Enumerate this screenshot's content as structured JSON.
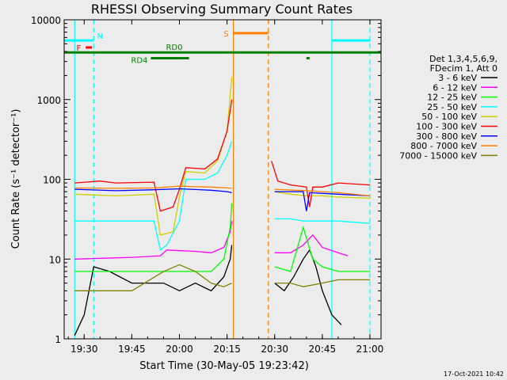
{
  "chart_data": {
    "type": "line",
    "title": "RHESSI Observing Summary Count Rates",
    "xlabel": "Start Time (30-May-05 19:23:42)",
    "ylabel": "Count Rate (s⁻¹ detector⁻¹)",
    "y_scale": "log",
    "ylim": [
      1,
      10000
    ],
    "xlim": [
      "19:23:42",
      "21:03:30"
    ],
    "x_ticks": [
      "19:30",
      "19:45",
      "20:00",
      "20:15",
      "20:30",
      "20:45",
      "21:00"
    ],
    "y_ticks": [
      "1",
      "10",
      "100",
      "1000",
      "10000"
    ],
    "legend_position": "right",
    "legend_header": [
      "Det 1,3,4,5,6,9,",
      "FDecim 1, Att 0"
    ],
    "series": [
      {
        "name": "3 - 6 keV",
        "color": "#000000",
        "points": [
          [
            "19:27",
            1.1
          ],
          [
            "19:30",
            2
          ],
          [
            "19:33",
            8
          ],
          [
            "19:38",
            7
          ],
          [
            "19:45",
            5
          ],
          [
            "19:55",
            5
          ],
          [
            "20:00",
            4
          ],
          [
            "20:05",
            5
          ],
          [
            "20:10",
            4
          ],
          [
            "20:14",
            6
          ],
          [
            "20:16",
            10
          ],
          [
            "20:16:30",
            15
          ]
        ],
        "points_after_gap": [
          [
            "20:30",
            5
          ],
          [
            "20:33",
            4
          ],
          [
            "20:36",
            6
          ],
          [
            "20:39",
            10
          ],
          [
            "20:41",
            13
          ],
          [
            "20:43",
            8
          ],
          [
            "20:45",
            4
          ],
          [
            "20:48",
            2
          ],
          [
            "20:51",
            1.5
          ]
        ]
      },
      {
        "name": "6 - 12 keV",
        "color": "#ff00ff",
        "points": [
          [
            "19:27",
            10
          ],
          [
            "19:45",
            10.5
          ],
          [
            "19:54",
            11
          ],
          [
            "19:56",
            13
          ],
          [
            "20:05",
            12.5
          ],
          [
            "20:10",
            12
          ],
          [
            "20:14",
            14
          ],
          [
            "20:16",
            22
          ],
          [
            "20:16:30",
            30
          ]
        ],
        "points_after_gap": [
          [
            "20:30",
            12
          ],
          [
            "20:35",
            12
          ],
          [
            "20:39",
            15
          ],
          [
            "20:42",
            20
          ],
          [
            "20:45",
            14
          ],
          [
            "20:50",
            12
          ],
          [
            "20:53",
            11
          ]
        ]
      },
      {
        "name": "12 - 25 keV",
        "color": "#00ff00",
        "points": [
          [
            "19:27",
            7
          ],
          [
            "19:45",
            7
          ],
          [
            "19:55",
            7
          ],
          [
            "20:00",
            7
          ],
          [
            "20:10",
            7
          ],
          [
            "20:14",
            10
          ],
          [
            "20:16",
            25
          ],
          [
            "20:16:30",
            50
          ]
        ],
        "points_after_gap": [
          [
            "20:30",
            8
          ],
          [
            "20:35",
            7
          ],
          [
            "20:39",
            25
          ],
          [
            "20:42",
            10
          ],
          [
            "20:45",
            8
          ],
          [
            "20:50",
            7
          ],
          [
            "21:00",
            7
          ]
        ]
      },
      {
        "name": "25 - 50 keV",
        "color": "#00ffff",
        "points": [
          [
            "19:27",
            30
          ],
          [
            "19:40",
            30
          ],
          [
            "19:52",
            30
          ],
          [
            "19:54",
            13
          ],
          [
            "19:56",
            15
          ],
          [
            "20:00",
            30
          ],
          [
            "20:02",
            100
          ],
          [
            "20:08",
            100
          ],
          [
            "20:12",
            120
          ],
          [
            "20:15",
            200
          ],
          [
            "20:16:30",
            300
          ]
        ],
        "points_after_gap": [
          [
            "20:30",
            32
          ],
          [
            "20:35",
            32
          ],
          [
            "20:39",
            30
          ],
          [
            "20:45",
            30
          ],
          [
            "20:50",
            30
          ],
          [
            "21:00",
            28
          ]
        ]
      },
      {
        "name": "50 - 100 keV",
        "color": "#d0d000",
        "points": [
          [
            "19:27",
            65
          ],
          [
            "19:40",
            62
          ],
          [
            "19:52",
            65
          ],
          [
            "19:54",
            20
          ],
          [
            "19:58",
            22
          ],
          [
            "20:00",
            60
          ],
          [
            "20:02",
            125
          ],
          [
            "20:08",
            120
          ],
          [
            "20:12",
            170
          ],
          [
            "20:15",
            400
          ],
          [
            "20:16:30",
            1900
          ]
        ],
        "points_after_gap": [
          [
            "20:30",
            70
          ],
          [
            "20:35",
            65
          ],
          [
            "20:40",
            62
          ],
          [
            "20:45",
            62
          ],
          [
            "20:50",
            60
          ],
          [
            "21:00",
            58
          ]
        ]
      },
      {
        "name": "100 - 300 keV",
        "color": "#ff0000",
        "points": [
          [
            "19:27",
            90
          ],
          [
            "19:35",
            95
          ],
          [
            "19:40",
            90
          ],
          [
            "19:52",
            92
          ],
          [
            "19:54",
            40
          ],
          [
            "19:58",
            45
          ],
          [
            "20:00",
            75
          ],
          [
            "20:02",
            140
          ],
          [
            "20:08",
            135
          ],
          [
            "20:12",
            180
          ],
          [
            "20:15",
            400
          ],
          [
            "20:16:30",
            1000
          ]
        ],
        "points_after_gap": [
          [
            "20:29",
            170
          ],
          [
            "20:31",
            95
          ],
          [
            "20:35",
            85
          ],
          [
            "20:40",
            80
          ],
          [
            "20:41",
            45
          ],
          [
            "20:42",
            80
          ],
          [
            "20:45",
            80
          ],
          [
            "20:50",
            90
          ],
          [
            "21:00",
            85
          ]
        ]
      },
      {
        "name": "300 - 800 keV",
        "color": "#0000ff",
        "points": [
          [
            "19:27",
            75
          ],
          [
            "19:40",
            72
          ],
          [
            "19:52",
            74
          ],
          [
            "20:00",
            76
          ],
          [
            "20:10",
            73
          ],
          [
            "20:15",
            70
          ],
          [
            "20:16:30",
            68
          ]
        ],
        "points_after_gap": [
          [
            "20:30",
            70
          ],
          [
            "20:39",
            70
          ],
          [
            "20:40",
            40
          ],
          [
            "20:41",
            68
          ],
          [
            "20:50",
            65
          ],
          [
            "21:00",
            62
          ]
        ]
      },
      {
        "name": "800 - 7000 keV",
        "color": "#ff8000",
        "points": [
          [
            "19:27",
            78
          ],
          [
            "19:40",
            77
          ],
          [
            "19:52",
            78
          ],
          [
            "20:00",
            82
          ],
          [
            "20:10",
            80
          ],
          [
            "20:15",
            78
          ],
          [
            "20:16:30",
            77
          ]
        ],
        "points_after_gap": [
          [
            "20:30",
            75
          ],
          [
            "20:40",
            72
          ],
          [
            "20:50",
            68
          ],
          [
            "21:00",
            62
          ]
        ]
      },
      {
        "name": "7000 - 15000 keV",
        "color": "#808000",
        "points": [
          [
            "19:27",
            4
          ],
          [
            "19:35",
            4
          ],
          [
            "19:45",
            4
          ],
          [
            "19:55",
            7
          ],
          [
            "20:00",
            8.5
          ],
          [
            "20:05",
            7
          ],
          [
            "20:10",
            5
          ],
          [
            "20:14",
            4.5
          ],
          [
            "20:16:30",
            5
          ]
        ],
        "points_after_gap": [
          [
            "20:30",
            5
          ],
          [
            "20:35",
            5
          ],
          [
            "20:39",
            4.5
          ],
          [
            "20:45",
            5
          ],
          [
            "20:50",
            5.5
          ],
          [
            "21:00",
            5.5
          ]
        ]
      }
    ],
    "gap_x": [
      "20:16:30",
      "20:29"
    ],
    "vertical_markers": [
      {
        "x": "19:27",
        "color": "#00ffff",
        "style": "solid"
      },
      {
        "x": "19:33",
        "color": "#00ffff",
        "style": "dashed"
      },
      {
        "x": "20:17",
        "color": "#ff8000",
        "style": "solid"
      },
      {
        "x": "20:28",
        "color": "#ff8000",
        "style": "dashed"
      },
      {
        "x": "20:48",
        "color": "#00ffff",
        "style": "solid"
      },
      {
        "x": "21:00",
        "color": "#00ffff",
        "style": "dashed"
      }
    ],
    "flag_bars": [
      {
        "label": "N",
        "color": "#00ffff",
        "y": 5500,
        "ranges": [
          [
            "19:23:42",
            "19:33"
          ],
          [
            "20:48",
            "21:00"
          ]
        ]
      },
      {
        "label": "F",
        "color": "#ff0000",
        "y": 4500,
        "ranges": [
          [
            "19:30:30",
            "19:32:30"
          ]
        ]
      },
      {
        "label": "S",
        "color": "#ff8000",
        "y": 6800,
        "ranges": [
          [
            "20:17",
            "20:28"
          ]
        ]
      },
      {
        "label": "RD0",
        "color": "#008000",
        "y": 3900,
        "ranges": [
          [
            "19:23:42",
            "21:03:30"
          ]
        ]
      },
      {
        "label": "RD4",
        "color": "#008000",
        "y": 3300,
        "ranges": [
          [
            "19:51",
            "20:03"
          ],
          [
            "20:40",
            "20:41"
          ]
        ]
      }
    ]
  },
  "timestamp": "17-Oct-2021 10:42"
}
